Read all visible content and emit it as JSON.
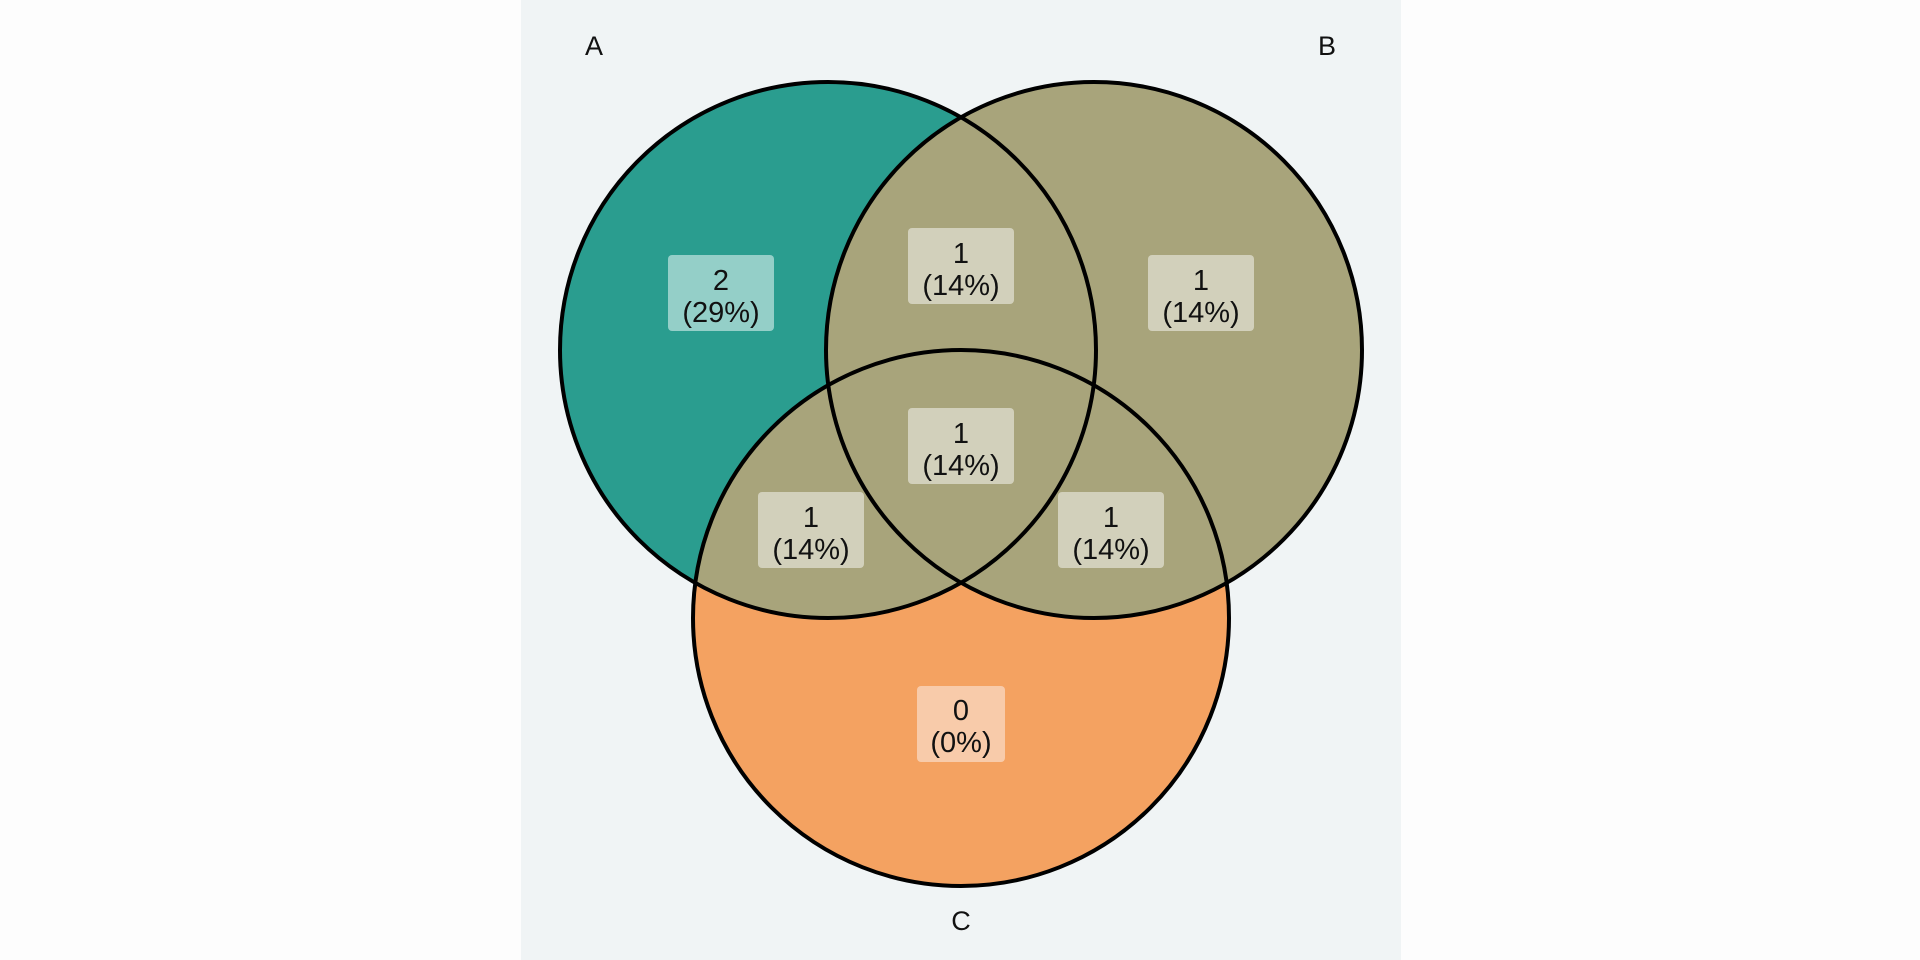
{
  "colors": {
    "page_bg": "#fdfdfd",
    "panel_bg": "#f0f4f5",
    "set_a": "#2a9d8f",
    "set_b": "#a8a47b",
    "set_c": "#f4a261",
    "overlap": "#a8a47b",
    "outline": "#000000"
  },
  "diagram": {
    "sets": [
      {
        "key": "A",
        "label": "A"
      },
      {
        "key": "B",
        "label": "B"
      },
      {
        "key": "C",
        "label": "C"
      }
    ],
    "regions": [
      {
        "key": "a_only",
        "sets": [
          "A"
        ],
        "count": "2",
        "percent": "(29%)",
        "label_bg": "#94cfc8"
      },
      {
        "key": "b_only",
        "sets": [
          "B"
        ],
        "count": "1",
        "percent": "(14%)",
        "label_bg": "#d2d0bb"
      },
      {
        "key": "c_only",
        "sets": [
          "C"
        ],
        "count": "0",
        "percent": "(0%)",
        "label_bg": "#f8cbaa"
      },
      {
        "key": "ab",
        "sets": [
          "A",
          "B"
        ],
        "count": "1",
        "percent": "(14%)",
        "label_bg": "#d2d0bb"
      },
      {
        "key": "ac",
        "sets": [
          "A",
          "C"
        ],
        "count": "1",
        "percent": "(14%)",
        "label_bg": "#d2d0bb"
      },
      {
        "key": "bc",
        "sets": [
          "B",
          "C"
        ],
        "count": "1",
        "percent": "(14%)",
        "label_bg": "#d2d0bb"
      },
      {
        "key": "abc",
        "sets": [
          "A",
          "B",
          "C"
        ],
        "count": "1",
        "percent": "(14%)",
        "label_bg": "#d2d0bb"
      }
    ]
  }
}
